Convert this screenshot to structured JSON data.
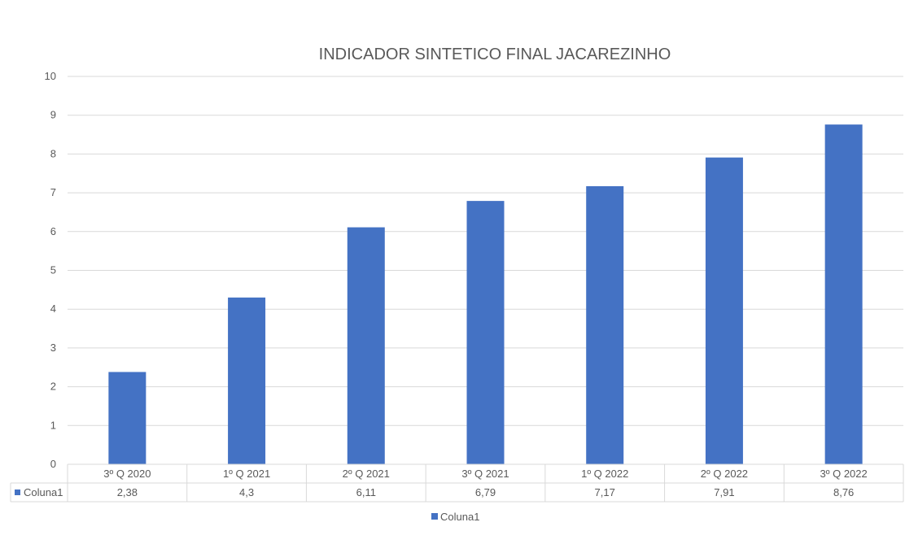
{
  "chart_data": {
    "type": "bar",
    "title": "INDICADOR SINTETICO FINAL JACAREZINHO",
    "categories": [
      "3º Q 2020",
      "1º Q 2021",
      "2º Q 2021",
      "3º Q 2021",
      "1º Q 2022",
      "2º Q 2022",
      "3º Q 2022"
    ],
    "series": [
      {
        "name": "Coluna1",
        "values": [
          2.38,
          4.3,
          6.11,
          6.79,
          7.17,
          7.91,
          8.76
        ],
        "value_labels": [
          "2,38",
          "4,3",
          "6,11",
          "6,79",
          "7,17",
          "7,91",
          "8,76"
        ],
        "color": "#4472c4"
      }
    ],
    "ylim": [
      0,
      10
    ],
    "yticks": [
      "0",
      "1",
      "2",
      "3",
      "4",
      "5",
      "6",
      "7",
      "8",
      "9",
      "10"
    ],
    "grid": true,
    "data_table": true,
    "legend_position": "bottom"
  },
  "colors": {
    "bar": "#4472c4",
    "gridline": "#d9d9d9",
    "text": "#595959",
    "title": "#595959"
  }
}
